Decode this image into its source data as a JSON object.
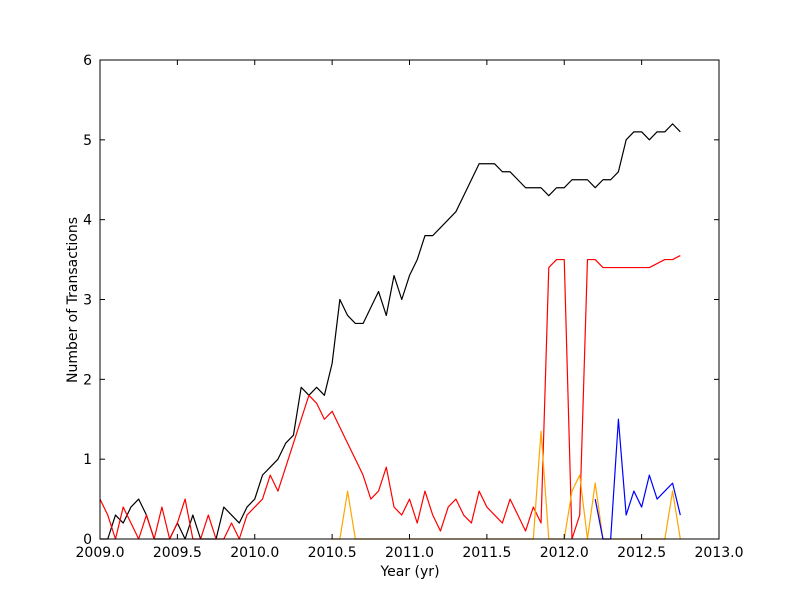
{
  "chart_data": {
    "type": "line",
    "xlabel": "Year (yr)",
    "ylabel": "Number of Transactions",
    "xlim": [
      2009,
      2013
    ],
    "ylim": [
      0,
      6
    ],
    "xticks": [
      {
        "value": 2009,
        "label": "2009.0"
      },
      {
        "value": 2009.5,
        "label": "2009.5"
      },
      {
        "value": 2010,
        "label": "2010.0"
      },
      {
        "value": 2010.5,
        "label": "2010.5"
      },
      {
        "value": 2011,
        "label": "2011.0"
      },
      {
        "value": 2011.5,
        "label": "2011.5"
      },
      {
        "value": 2012,
        "label": "2012.0"
      },
      {
        "value": 2012.5,
        "label": "2012.5"
      },
      {
        "value": 2013,
        "label": "2013.0"
      }
    ],
    "yticks": [
      0,
      1,
      2,
      3,
      4,
      5,
      6
    ],
    "grid": false,
    "x": [
      2009.0,
      2009.05,
      2009.1,
      2009.15,
      2009.2,
      2009.25,
      2009.3,
      2009.35,
      2009.4,
      2009.45,
      2009.5,
      2009.55,
      2009.6,
      2009.65,
      2009.7,
      2009.75,
      2009.8,
      2009.85,
      2009.9,
      2009.95,
      2010.0,
      2010.05,
      2010.1,
      2010.15,
      2010.2,
      2010.25,
      2010.3,
      2010.35,
      2010.4,
      2010.45,
      2010.5,
      2010.55,
      2010.6,
      2010.65,
      2010.7,
      2010.75,
      2010.8,
      2010.85,
      2010.9,
      2010.95,
      2011.0,
      2011.05,
      2011.1,
      2011.15,
      2011.2,
      2011.25,
      2011.3,
      2011.35,
      2011.4,
      2011.45,
      2011.5,
      2011.55,
      2011.6,
      2011.65,
      2011.7,
      2011.75,
      2011.8,
      2011.85,
      2011.9,
      2011.95,
      2012.0,
      2012.05,
      2012.1,
      2012.15,
      2012.2,
      2012.25,
      2012.3,
      2012.35,
      2012.4,
      2012.45,
      2012.5,
      2012.55,
      2012.6,
      2012.65,
      2012.7,
      2012.75
    ],
    "series": [
      {
        "color": "#000000",
        "values": [
          0,
          0,
          0.3,
          0.2,
          0.4,
          0.5,
          0.3,
          0,
          0,
          0,
          0.2,
          0,
          0.3,
          0,
          0,
          0,
          0.4,
          0.3,
          0.2,
          0.4,
          0.5,
          0.8,
          0.9,
          1.0,
          1.2,
          1.3,
          1.9,
          1.8,
          1.9,
          1.8,
          2.2,
          3.0,
          2.8,
          2.7,
          2.7,
          2.9,
          3.1,
          2.8,
          3.3,
          3.0,
          3.3,
          3.5,
          3.8,
          3.8,
          3.9,
          4.0,
          4.1,
          4.3,
          4.5,
          4.7,
          4.7,
          4.7,
          4.6,
          4.6,
          4.5,
          4.4,
          4.4,
          4.4,
          4.3,
          4.4,
          4.4,
          4.5,
          4.5,
          4.5,
          4.4,
          4.5,
          4.5,
          4.6,
          5.0,
          5.1,
          5.1,
          5.0,
          5.1,
          5.1,
          5.2,
          5.1
        ]
      },
      {
        "color": "#ff0000",
        "values": [
          0.5,
          0.3,
          0,
          0.4,
          0.2,
          0,
          0.3,
          0,
          0.4,
          0,
          0.2,
          0.5,
          0,
          0,
          0.3,
          0,
          0,
          0.2,
          0,
          0.3,
          0.4,
          0.5,
          0.8,
          0.6,
          0.9,
          1.2,
          1.5,
          1.8,
          1.7,
          1.5,
          1.6,
          1.4,
          1.2,
          1.0,
          0.8,
          0.5,
          0.6,
          0.9,
          0.4,
          0.3,
          0.5,
          0.2,
          0.6,
          0.3,
          0.1,
          0.4,
          0.5,
          0.3,
          0.2,
          0.6,
          0.4,
          0.3,
          0.2,
          0.5,
          0.3,
          0.1,
          0.4,
          0.2,
          3.4,
          3.5,
          3.5,
          0,
          0.3,
          3.5,
          3.5,
          3.4,
          3.4,
          3.4,
          3.4,
          3.4,
          3.4,
          3.4,
          3.45,
          3.5,
          3.5,
          3.55
        ]
      },
      {
        "color": "#ffa500",
        "values": [
          null,
          null,
          null,
          null,
          null,
          null,
          null,
          null,
          null,
          null,
          null,
          null,
          null,
          null,
          null,
          null,
          null,
          null,
          null,
          null,
          null,
          null,
          null,
          null,
          null,
          null,
          null,
          null,
          null,
          null,
          0,
          0,
          0.6,
          0,
          0,
          0,
          0,
          0,
          0,
          0,
          0,
          0,
          0,
          0,
          0,
          0,
          0,
          0,
          0,
          0,
          0,
          0,
          0,
          0,
          0,
          0,
          0,
          1.35,
          0,
          0,
          0,
          0.6,
          0.8,
          0,
          0.7,
          0,
          0,
          0,
          0,
          0,
          0,
          0,
          0,
          0,
          0.6,
          0
        ]
      },
      {
        "color": "#0000ff",
        "values": [
          null,
          null,
          null,
          null,
          null,
          null,
          null,
          null,
          null,
          null,
          null,
          null,
          null,
          null,
          null,
          null,
          null,
          null,
          null,
          null,
          null,
          null,
          null,
          null,
          null,
          null,
          null,
          null,
          null,
          null,
          null,
          null,
          null,
          null,
          null,
          null,
          null,
          null,
          null,
          null,
          null,
          null,
          null,
          null,
          null,
          null,
          null,
          null,
          null,
          null,
          null,
          null,
          null,
          null,
          null,
          null,
          null,
          null,
          null,
          null,
          null,
          null,
          null,
          null,
          0.5,
          0,
          0,
          1.5,
          0.3,
          0.6,
          0.4,
          0.8,
          0.5,
          0.6,
          0.7,
          0.3
        ]
      }
    ]
  }
}
